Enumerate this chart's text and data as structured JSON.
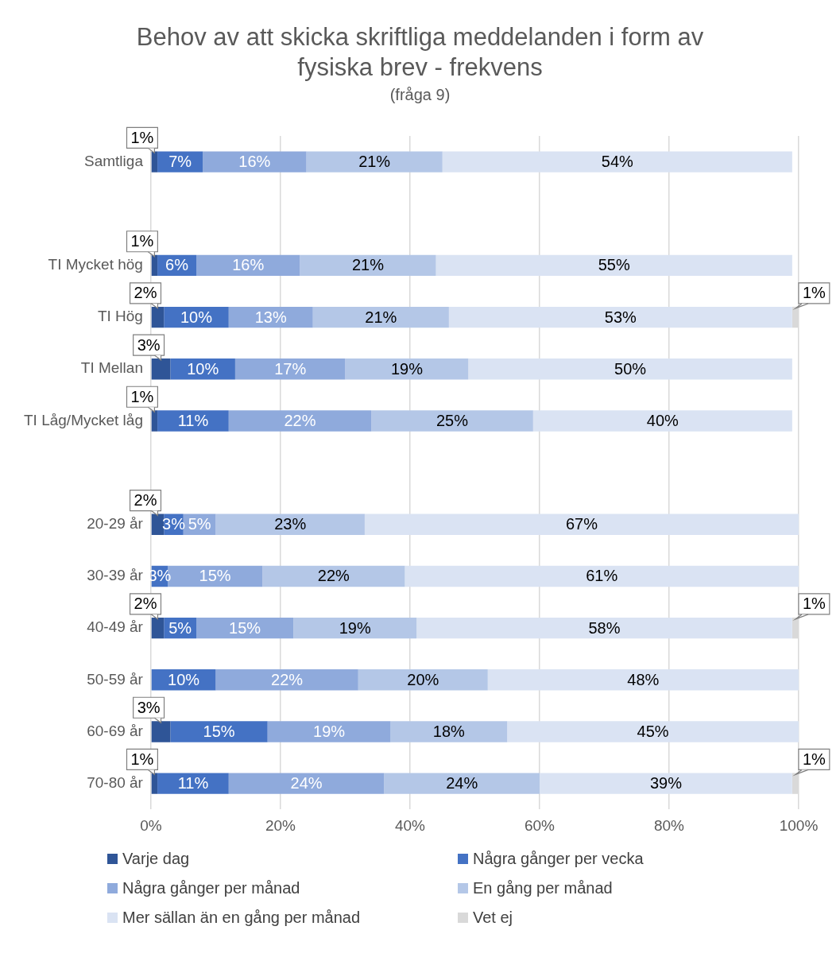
{
  "chart_data": {
    "type": "bar",
    "orientation": "horizontal",
    "stacked": true,
    "title": "Behov av att skicka skriftliga meddelanden i form av fysiska brev - frekvens",
    "subtitle": "(fråga 9)",
    "categories": [
      "Samtliga",
      null,
      "TI Mycket hög",
      "TI Hög",
      "TI Mellan",
      "TI Låg/Mycket låg",
      null,
      "20-29 år",
      "30-39 år",
      "40-49 år",
      "50-59 år",
      "60-69 år",
      "70-80 år"
    ],
    "series": [
      {
        "name": "Varje dag",
        "color": "#2f5597",
        "values": [
          1,
          null,
          1,
          2,
          3,
          1,
          null,
          2,
          null,
          2,
          null,
          3,
          1
        ],
        "value_labels": [
          "1%",
          null,
          "1%",
          "2%",
          "3%",
          "1%",
          null,
          "2%",
          null,
          "2%",
          null,
          "3%",
          "1%"
        ]
      },
      {
        "name": "Några gånger per vecka",
        "color": "#4472c4",
        "values": [
          7,
          null,
          6,
          10,
          10,
          11,
          null,
          3,
          2.6,
          5,
          10,
          15,
          11
        ],
        "value_labels": [
          "7%",
          null,
          "6%",
          "10%",
          "10%",
          "11%",
          null,
          "3%",
          "3%",
          "5%",
          "10%",
          "15%",
          "11%"
        ]
      },
      {
        "name": "Några gånger per månad",
        "color": "#8faadc",
        "values": [
          16,
          null,
          16,
          13,
          17,
          22,
          null,
          5,
          14.6,
          15,
          22,
          19,
          24
        ],
        "value_labels": [
          "16%",
          null,
          "16%",
          "13%",
          "17%",
          "22%",
          null,
          "5%",
          "15%",
          "15%",
          "22%",
          "19%",
          "24%"
        ]
      },
      {
        "name": "En gång per månad",
        "color": "#b4c7e7",
        "values": [
          21,
          null,
          21,
          21,
          19,
          25,
          null,
          23,
          22,
          19,
          20,
          18,
          24
        ],
        "value_labels": [
          "21%",
          null,
          "21%",
          "21%",
          "19%",
          "25%",
          null,
          "23%",
          "22%",
          "19%",
          "20%",
          "18%",
          "24%"
        ]
      },
      {
        "name": "Mer sällan än en gång per månad",
        "color": "#dae3f3",
        "values": [
          54,
          null,
          55,
          53,
          50,
          40,
          null,
          67,
          60.8,
          58,
          48,
          45,
          39
        ],
        "value_labels": [
          "54%",
          null,
          "55%",
          "53%",
          "50%",
          "40%",
          null,
          "67%",
          "61%",
          "58%",
          "48%",
          "45%",
          "39%"
        ]
      },
      {
        "name": "Vet ej",
        "color": "#d9d9d9",
        "values": [
          null,
          null,
          null,
          1,
          null,
          null,
          null,
          null,
          null,
          1,
          null,
          null,
          1
        ],
        "value_labels": [
          null,
          null,
          null,
          "1%",
          null,
          null,
          null,
          null,
          null,
          "1%",
          null,
          null,
          "1%"
        ]
      }
    ],
    "xlim": [
      0,
      100
    ],
    "xticks": [
      {
        "value": 0,
        "label": "0%"
      },
      {
        "value": 20,
        "label": "20%"
      },
      {
        "value": 40,
        "label": "40%"
      },
      {
        "value": 60,
        "label": "60%"
      },
      {
        "value": 80,
        "label": "80%"
      },
      {
        "value": 100,
        "label": "100%"
      }
    ],
    "grid": "x",
    "legend": "bottom"
  }
}
